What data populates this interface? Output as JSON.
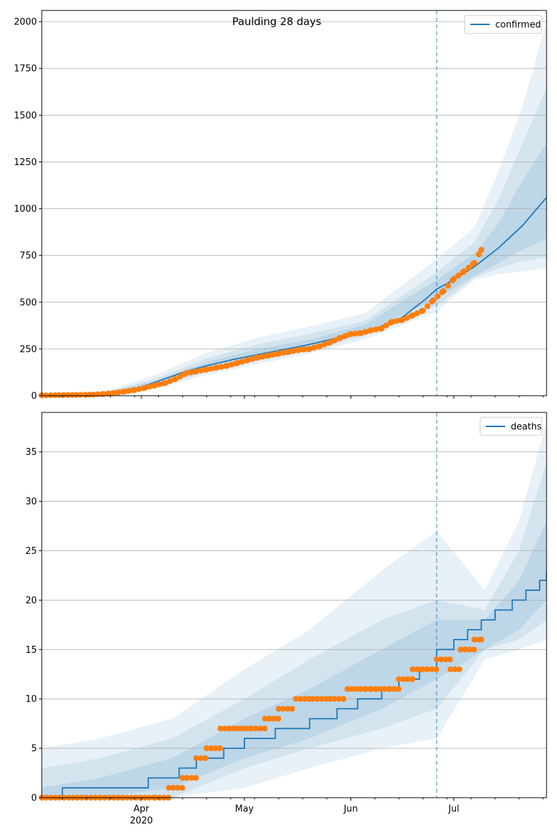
{
  "chart_data": [
    {
      "type": "line",
      "title": "Paulding 28 days",
      "legend": {
        "label": "confirmed",
        "placement": "top-right"
      },
      "x_axis": {
        "start": "2020-03-03",
        "end": "2020-07-28",
        "ticks": [
          {
            "date": "2020-04-01",
            "label": "Apr",
            "sub": "2020"
          },
          {
            "date": "2020-05-01",
            "label": "May",
            "sub": ""
          },
          {
            "date": "2020-06-01",
            "label": "Jun",
            "sub": ""
          },
          {
            "date": "2020-07-01",
            "label": "Jul",
            "sub": ""
          }
        ]
      },
      "ylim": [
        0,
        2060
      ],
      "yticks": [
        0,
        250,
        500,
        750,
        1000,
        1250,
        1500,
        1750,
        2000
      ],
      "grid": true,
      "forecast_start": "2020-06-26",
      "model": {
        "name": "confirmed",
        "color": "#1f77b4",
        "x": [
          "2020-03-03",
          "2020-03-10",
          "2020-03-17",
          "2020-03-24",
          "2020-03-31",
          "2020-04-07",
          "2020-04-14",
          "2020-04-21",
          "2020-04-28",
          "2020-05-05",
          "2020-05-12",
          "2020-05-19",
          "2020-05-26",
          "2020-06-02",
          "2020-06-09",
          "2020-06-16",
          "2020-06-23",
          "2020-06-26",
          "2020-06-30",
          "2020-07-07",
          "2020-07-14",
          "2020-07-21",
          "2020-07-28"
        ],
        "y": [
          1,
          2,
          4,
          12,
          40,
          85,
          130,
          165,
          195,
          220,
          245,
          270,
          300,
          330,
          365,
          420,
          520,
          570,
          610,
          690,
          790,
          910,
          1060
        ]
      },
      "bands": [
        {
          "x": [
            "2020-03-03",
            "2020-03-20",
            "2020-04-05",
            "2020-04-20",
            "2020-05-05",
            "2020-05-20",
            "2020-06-05",
            "2020-06-26",
            "2020-07-07",
            "2020-07-14",
            "2020-07-21",
            "2020-07-28"
          ],
          "lower": [
            0,
            0,
            40,
            110,
            170,
            225,
            300,
            450,
            620,
            650,
            665,
            680
          ],
          "upper": [
            5,
            15,
            110,
            230,
            310,
            370,
            440,
            730,
            900,
            1200,
            1550,
            2000
          ]
        },
        {
          "x": [
            "2020-03-03",
            "2020-03-20",
            "2020-04-05",
            "2020-04-20",
            "2020-05-05",
            "2020-05-20",
            "2020-06-05",
            "2020-06-26",
            "2020-07-07",
            "2020-07-14",
            "2020-07-21",
            "2020-07-28"
          ],
          "lower": [
            0,
            2,
            50,
            125,
            185,
            240,
            320,
            480,
            630,
            680,
            720,
            740
          ],
          "upper": [
            4,
            10,
            90,
            200,
            275,
            330,
            400,
            660,
            820,
            1050,
            1350,
            1650
          ]
        },
        {
          "x": [
            "2020-03-03",
            "2020-03-20",
            "2020-04-05",
            "2020-04-20",
            "2020-05-05",
            "2020-05-20",
            "2020-06-05",
            "2020-06-26",
            "2020-07-07",
            "2020-07-14",
            "2020-07-21",
            "2020-07-28"
          ],
          "lower": [
            0,
            3,
            60,
            140,
            195,
            250,
            335,
            520,
            640,
            710,
            780,
            840
          ],
          "upper": [
            3,
            8,
            80,
            180,
            250,
            300,
            380,
            620,
            760,
            920,
            1150,
            1350
          ]
        }
      ],
      "observed": {
        "name": "observed",
        "color": "#ff7f0e",
        "x": [
          "2020-03-03",
          "2020-03-08",
          "2020-03-13",
          "2020-03-18",
          "2020-03-21",
          "2020-03-24",
          "2020-03-27",
          "2020-03-30",
          "2020-04-02",
          "2020-04-05",
          "2020-04-08",
          "2020-04-11",
          "2020-04-14",
          "2020-04-17",
          "2020-04-20",
          "2020-04-23",
          "2020-04-26",
          "2020-04-29",
          "2020-05-02",
          "2020-05-05",
          "2020-05-08",
          "2020-05-11",
          "2020-05-14",
          "2020-05-17",
          "2020-05-20",
          "2020-05-23",
          "2020-05-26",
          "2020-05-29",
          "2020-06-01",
          "2020-06-04",
          "2020-06-07",
          "2020-06-10",
          "2020-06-13",
          "2020-06-16",
          "2020-06-19",
          "2020-06-22",
          "2020-06-25",
          "2020-06-28",
          "2020-07-01",
          "2020-07-04",
          "2020-07-07",
          "2020-07-09"
        ],
        "y": [
          2,
          3,
          4,
          6,
          9,
          14,
          22,
          30,
          42,
          55,
          68,
          90,
          120,
          130,
          140,
          150,
          160,
          175,
          190,
          205,
          215,
          225,
          235,
          245,
          250,
          265,
          285,
          310,
          330,
          335,
          350,
          360,
          395,
          405,
          430,
          455,
          510,
          560,
          625,
          665,
          710,
          780
        ]
      }
    },
    {
      "type": "line",
      "title": "",
      "legend": {
        "label": "deaths",
        "placement": "top-right"
      },
      "x_axis": {
        "start": "2020-03-03",
        "end": "2020-07-28",
        "ticks": [
          {
            "date": "2020-04-01",
            "label": "Apr",
            "sub": "2020"
          },
          {
            "date": "2020-05-01",
            "label": "May",
            "sub": ""
          },
          {
            "date": "2020-06-01",
            "label": "Jun",
            "sub": ""
          },
          {
            "date": "2020-07-01",
            "label": "Jul",
            "sub": ""
          }
        ]
      },
      "ylim": [
        0,
        39
      ],
      "yticks": [
        0,
        5,
        10,
        15,
        20,
        25,
        30,
        35
      ],
      "grid": true,
      "forecast_start": "2020-06-26",
      "model": {
        "name": "deaths",
        "color": "#1f77b4",
        "x": [
          "2020-03-03",
          "2020-03-09",
          "2020-04-03",
          "2020-04-12",
          "2020-04-17",
          "2020-04-25",
          "2020-05-01",
          "2020-05-10",
          "2020-05-20",
          "2020-05-28",
          "2020-06-03",
          "2020-06-10",
          "2020-06-15",
          "2020-06-21",
          "2020-06-26",
          "2020-07-01",
          "2020-07-05",
          "2020-07-09",
          "2020-07-13",
          "2020-07-18",
          "2020-07-22",
          "2020-07-26",
          "2020-07-28"
        ],
        "y": [
          0,
          1,
          2,
          3,
          4,
          5,
          6,
          7,
          8,
          9,
          10,
          11,
          12,
          13,
          15,
          16,
          17,
          18,
          19,
          20,
          21,
          22,
          23
        ]
      },
      "bands": [
        {
          "x": [
            "2020-03-03",
            "2020-03-20",
            "2020-04-10",
            "2020-05-01",
            "2020-05-20",
            "2020-06-10",
            "2020-06-26",
            "2020-07-10",
            "2020-07-20",
            "2020-07-28"
          ],
          "lower": [
            0,
            0,
            0,
            1,
            3,
            5,
            6,
            14,
            15,
            16
          ],
          "upper": [
            5,
            6,
            8,
            13,
            17,
            23,
            27,
            21,
            28,
            38
          ]
        },
        {
          "x": [
            "2020-03-03",
            "2020-03-20",
            "2020-04-10",
            "2020-05-01",
            "2020-05-20",
            "2020-06-10",
            "2020-06-26",
            "2020-07-10",
            "2020-07-20",
            "2020-07-28"
          ],
          "lower": [
            0,
            0,
            0,
            3,
            5,
            7,
            9,
            15,
            16,
            18
          ],
          "upper": [
            3,
            4,
            6,
            10,
            14,
            18,
            20,
            19,
            25,
            34
          ]
        },
        {
          "x": [
            "2020-03-03",
            "2020-03-20",
            "2020-04-10",
            "2020-05-01",
            "2020-05-20",
            "2020-06-10",
            "2020-06-26",
            "2020-07-10",
            "2020-07-20",
            "2020-07-28"
          ],
          "lower": [
            0,
            0,
            1,
            4,
            6,
            9,
            12,
            15,
            17,
            20
          ],
          "upper": [
            1,
            2,
            4,
            8,
            11,
            15,
            18,
            18,
            22,
            28
          ]
        }
      ],
      "observed": {
        "name": "observed",
        "color": "#ff7f0e",
        "x": [
          "2020-03-03",
          "2020-03-20",
          "2020-04-05",
          "2020-04-09",
          "2020-04-13",
          "2020-04-17",
          "2020-04-20",
          "2020-04-24",
          "2020-04-29",
          "2020-05-03",
          "2020-05-07",
          "2020-05-11",
          "2020-05-16",
          "2020-05-21",
          "2020-05-26",
          "2020-05-31",
          "2020-06-04",
          "2020-06-07",
          "2020-06-11",
          "2020-06-15",
          "2020-06-19",
          "2020-06-22",
          "2020-06-26",
          "2020-06-30",
          "2020-07-03",
          "2020-07-07",
          "2020-07-09"
        ],
        "y": [
          0,
          0,
          0,
          1,
          2,
          4,
          5,
          7,
          7,
          7,
          8,
          9,
          10,
          10,
          10,
          11,
          11,
          11,
          11,
          12,
          13,
          13,
          14,
          13,
          15,
          16,
          16
        ]
      }
    }
  ]
}
